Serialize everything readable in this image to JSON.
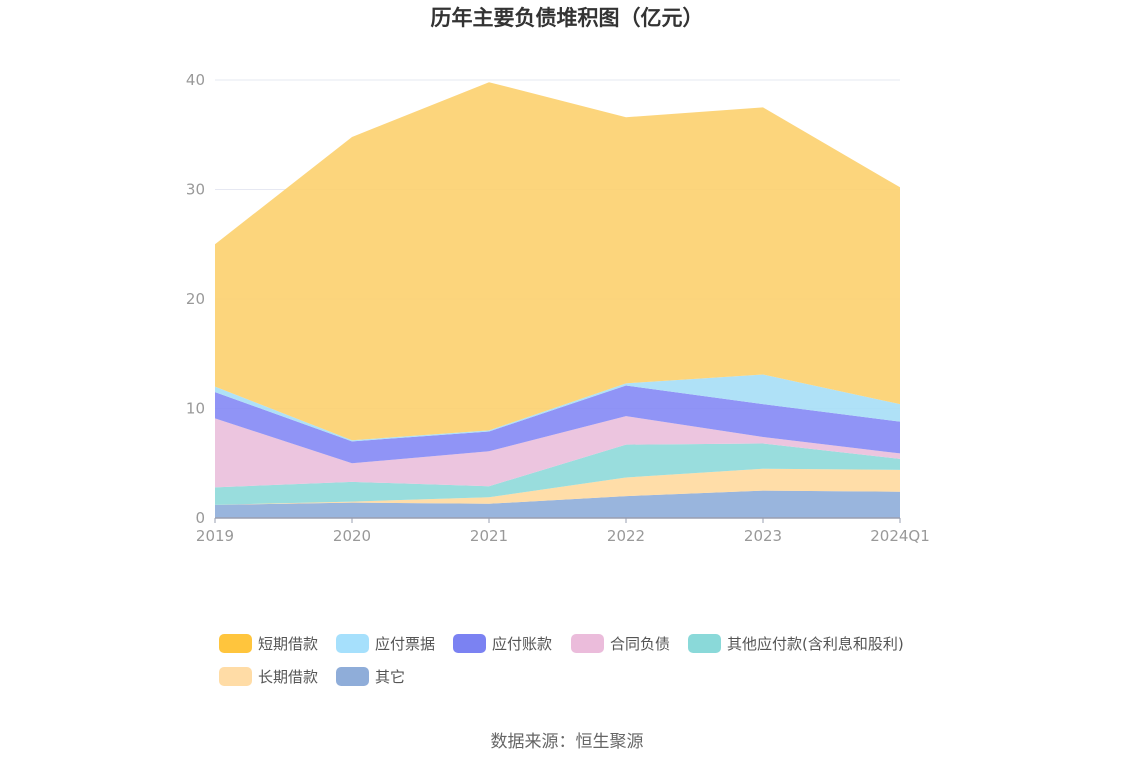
{
  "chart_data": {
    "type": "area",
    "title": "历年主要负债堆积图（亿元）",
    "categories": [
      "2019",
      "2020",
      "2021",
      "2022",
      "2023",
      "2024Q1"
    ],
    "ylim": [
      0,
      40
    ],
    "yticks": [
      0,
      10,
      20,
      30,
      40
    ],
    "grid": true,
    "legend_position": "bottom",
    "series": [
      {
        "name": "其它",
        "color": "#8eadd9",
        "values": [
          1.2,
          1.4,
          1.3,
          2.0,
          2.5,
          2.4
        ]
      },
      {
        "name": "长期借款",
        "color": "#ffd99e",
        "values": [
          0.0,
          0.1,
          0.6,
          1.7,
          2.0,
          2.0
        ]
      },
      {
        "name": "其他应付款(含利息和股利)",
        "color": "#8ed9d9",
        "values": [
          1.6,
          1.8,
          1.0,
          3.0,
          2.3,
          1.0
        ]
      },
      {
        "name": "合同负债",
        "color": "#eabfdc",
        "values": [
          6.3,
          1.7,
          3.2,
          2.6,
          0.6,
          0.5
        ]
      },
      {
        "name": "应付账款",
        "color": "#8488f5",
        "values": [
          2.4,
          2.0,
          1.8,
          2.8,
          3.0,
          2.9
        ]
      },
      {
        "name": "应付票据",
        "color": "#a6def6",
        "values": [
          0.5,
          0.1,
          0.1,
          0.2,
          2.7,
          1.6
        ]
      },
      {
        "name": "短期借款",
        "color": "#fcd06e",
        "values": [
          13.0,
          27.7,
          31.8,
          24.3,
          24.4,
          19.8
        ]
      }
    ],
    "legend_order": [
      "短期借款",
      "应付票据",
      "应付账款",
      "合同负债",
      "其他应付款(含利息和股利)",
      "长期借款",
      "其它"
    ],
    "legend_colors": {
      "短期借款": "#ffc53d",
      "应付票据": "#a6e0fc",
      "应付账款": "#7b82f2",
      "合同负债": "#ebbcdb",
      "其他应付款(含利息和股利)": "#8ad9d9",
      "长期借款": "#ffdca6",
      "其它": "#8fadd9"
    }
  },
  "source_text": "数据来源：恒生聚源"
}
